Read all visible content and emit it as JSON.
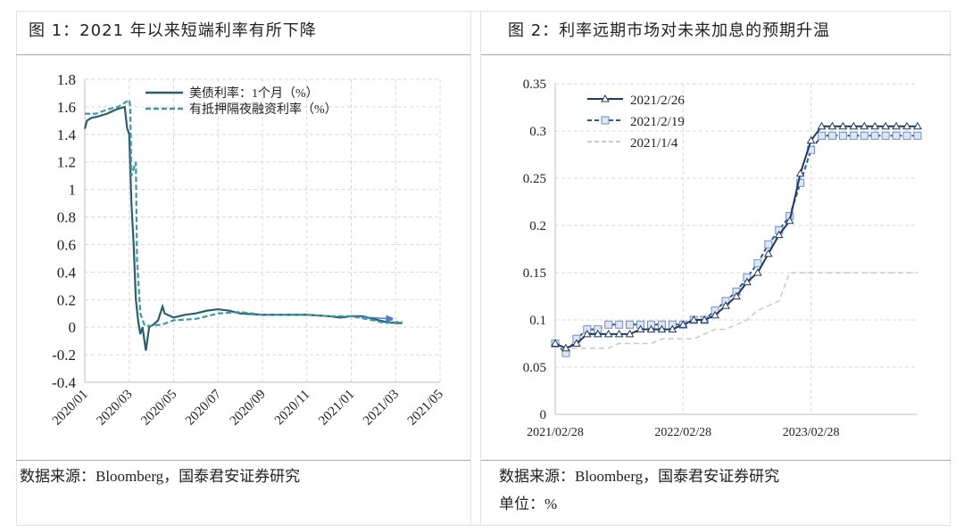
{
  "left": {
    "title": "图 1：2021 年以来短端利率有所下降",
    "source": "数据来源：Bloomberg，国泰君安证券研究"
  },
  "right": {
    "title": "图 2：利率远期市场对未来加息的预期升温",
    "source": "数据来源：Bloomberg，国泰君安证券研究",
    "unit": "单位：%"
  },
  "chart_data": [
    {
      "type": "line",
      "title": "图 1：2021 年以来短端利率有所下降",
      "xlabel": "",
      "ylabel": "",
      "x_unit": "months since 2020/01",
      "xlim": [
        0,
        16
      ],
      "ylim": [
        -0.4,
        1.8
      ],
      "yticks": [
        "1.8",
        "1.6",
        "1.4",
        "1.2",
        "1",
        "0.8",
        "0.6",
        "0.4",
        "0.2",
        "0",
        "-0.2",
        "-0.4"
      ],
      "ytick_values": [
        1.8,
        1.6,
        1.4,
        1.2,
        1,
        0.8,
        0.6,
        0.4,
        0.2,
        0,
        -0.2,
        -0.4
      ],
      "xticks": [
        "2020/01",
        "2020/03",
        "2020/05",
        "2020/07",
        "2020/09",
        "2020/11",
        "2021/01",
        "2021/03",
        "2021/05"
      ],
      "grid": true,
      "legend_position": "top-center",
      "series": [
        {
          "name": "美债利率：1个月（%）",
          "color": "#2b5f6e",
          "style": "solid",
          "x": [
            0,
            0.1,
            0.3,
            0.6,
            1.0,
            1.4,
            1.8,
            1.9,
            2.0,
            2.1,
            2.2,
            2.3,
            2.4,
            2.5,
            2.6,
            2.75,
            2.9,
            3.1,
            3.3,
            3.5,
            3.6,
            4,
            4.5,
            5,
            5.5,
            6,
            6.5,
            7,
            8,
            9,
            10,
            11,
            11.5,
            12,
            12.5,
            13,
            13.5,
            14,
            14.3
          ],
          "y": [
            1.44,
            1.5,
            1.52,
            1.53,
            1.55,
            1.58,
            1.6,
            1.45,
            1.4,
            0.9,
            0.6,
            0.2,
            0.05,
            -0.05,
            0.0,
            -0.17,
            0.0,
            0.02,
            0.05,
            0.15,
            0.1,
            0.07,
            0.09,
            0.1,
            0.12,
            0.13,
            0.12,
            0.1,
            0.09,
            0.09,
            0.09,
            0.08,
            0.07,
            0.08,
            0.08,
            0.06,
            0.04,
            0.03,
            0.03
          ]
        },
        {
          "name": "有抵押隔夜融资利率（%）",
          "color": "#3a9aa8",
          "style": "dashed",
          "x": [
            0,
            0.5,
            1,
            1.5,
            2.0,
            2.05,
            2.1,
            2.3,
            2.35,
            2.5,
            2.7,
            3,
            3.5,
            4,
            5,
            6,
            7,
            8,
            9,
            10,
            11,
            12,
            13,
            13.5,
            14.3
          ],
          "y": [
            1.55,
            1.55,
            1.58,
            1.6,
            1.65,
            1.6,
            1.1,
            1.2,
            0.5,
            0.1,
            0.01,
            0.01,
            0.02,
            0.05,
            0.06,
            0.1,
            0.11,
            0.09,
            0.09,
            0.09,
            0.08,
            0.08,
            0.05,
            0.03,
            0.04
          ]
        }
      ],
      "annotations": [
        {
          "type": "arrow",
          "from": [
            12,
            0.08
          ],
          "to": [
            13.8,
            0.06
          ],
          "color": "#4a7fc0"
        }
      ]
    },
    {
      "type": "line",
      "title": "图 2：利率远期市场对未来加息的预期升温",
      "xlabel": "",
      "ylabel": "",
      "x_unit": "months since 2021/02/28",
      "xlim": [
        0,
        34
      ],
      "ylim": [
        0,
        0.35
      ],
      "yticks": [
        "0.35",
        "0.3",
        "0.25",
        "0.2",
        "0.15",
        "0.1",
        "0.05",
        "0"
      ],
      "ytick_values": [
        0.35,
        0.3,
        0.25,
        0.2,
        0.15,
        0.1,
        0.05,
        0
      ],
      "xticks": [
        "2021/02/28",
        "2022/02/28",
        "2023/02/28"
      ],
      "xtick_values": [
        0,
        12,
        24
      ],
      "grid": true,
      "legend_position": "top-left",
      "series": [
        {
          "name": "2021/2/26",
          "color": "#1f3864",
          "style": "solid",
          "marker": "triangle",
          "y": [
            0.075,
            0.07,
            0.075,
            0.085,
            0.085,
            0.085,
            0.085,
            0.085,
            0.09,
            0.09,
            0.09,
            0.09,
            0.095,
            0.1,
            0.1,
            0.105,
            0.115,
            0.125,
            0.14,
            0.15,
            0.17,
            0.19,
            0.205,
            0.255,
            0.29,
            0.305,
            0.305,
            0.305,
            0.305,
            0.305,
            0.305,
            0.305,
            0.305,
            0.305,
            0.305
          ]
        },
        {
          "name": "2021/2/19",
          "color": "#2e5597",
          "style": "dashed",
          "marker": "square",
          "y": [
            0.075,
            0.065,
            0.08,
            0.09,
            0.09,
            0.095,
            0.095,
            0.095,
            0.095,
            0.095,
            0.095,
            0.095,
            0.095,
            0.1,
            0.1,
            0.11,
            0.12,
            0.13,
            0.145,
            0.16,
            0.18,
            0.195,
            0.21,
            0.245,
            0.28,
            0.295,
            0.295,
            0.295,
            0.295,
            0.295,
            0.295,
            0.295,
            0.295,
            0.295,
            0.295
          ]
        },
        {
          "name": "2021/1/4",
          "color": "#c8c8c8",
          "style": "dashed",
          "marker": "none",
          "y": [
            0.075,
            0.07,
            0.07,
            0.07,
            0.07,
            0.07,
            0.075,
            0.075,
            0.075,
            0.075,
            0.08,
            0.08,
            0.08,
            0.08,
            0.085,
            0.09,
            0.09,
            0.095,
            0.1,
            0.11,
            0.115,
            0.12,
            0.15,
            0.15,
            0.15,
            0.15,
            0.15,
            0.15,
            0.15,
            0.15,
            0.15,
            0.15,
            0.15,
            0.15,
            0.15
          ]
        }
      ]
    }
  ]
}
